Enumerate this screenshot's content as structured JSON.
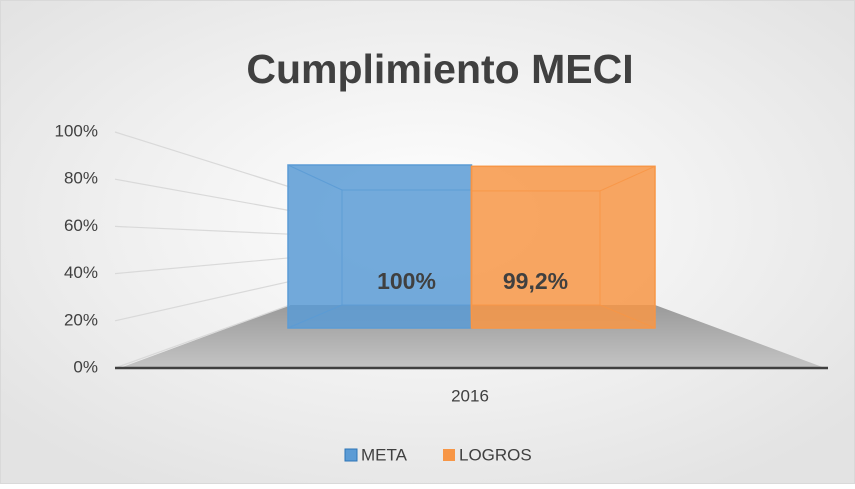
{
  "chart_data": {
    "type": "bar3d",
    "title": "Cumplimiento MECI",
    "categories": [
      "2016"
    ],
    "series": [
      {
        "name": "META",
        "color": "#5b9bd5",
        "values": [
          100
        ],
        "value_labels": [
          "100%"
        ]
      },
      {
        "name": "LOGROS",
        "color": "#f79646",
        "values": [
          99.2
        ],
        "value_labels": [
          "99,2%"
        ]
      }
    ],
    "ylim": [
      0,
      100
    ],
    "yticks": [
      {
        "value": 0,
        "label": "0%"
      },
      {
        "value": 20,
        "label": "20%"
      },
      {
        "value": 40,
        "label": "40%"
      },
      {
        "value": 60,
        "label": "60%"
      },
      {
        "value": 80,
        "label": "80%"
      },
      {
        "value": 100,
        "label": "100%"
      }
    ],
    "grid": true,
    "legend": "bottom"
  }
}
